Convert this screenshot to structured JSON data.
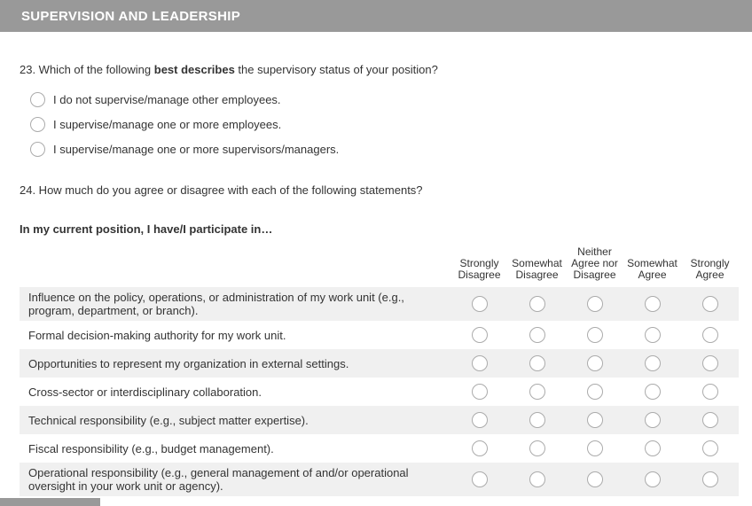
{
  "section": {
    "title": "SUPERVISION AND LEADERSHIP"
  },
  "q23": {
    "prefix": "23. Which of the following ",
    "bold": "best describes",
    "suffix": " the supervisory status of your position?",
    "options": [
      "I do not supervise/manage other employees.",
      "I supervise/manage one or more employees.",
      "I supervise/manage one or more supervisors/managers."
    ]
  },
  "q24": {
    "text": "24. How much do you agree or disagree with each of the following statements?",
    "intro": "In my current position, I have/I participate in…",
    "columns": [
      "Strongly\nDisagree",
      "Somewhat\nDisagree",
      "Neither\nAgree nor\nDisagree",
      "Somewhat\nAgree",
      "Strongly\nAgree"
    ],
    "rows": [
      "Influence on the policy, operations, or administration of my work unit (e.g., program, department, or branch).",
      "Formal decision-making authority for my work unit.",
      "Opportunities to represent my organization in external settings.",
      "Cross-sector or interdisciplinary collaboration.",
      "Technical responsibility (e.g., subject matter expertise).",
      "Fiscal responsibility (e.g., budget management).",
      "Operational responsibility (e.g., general management of and/or operational oversight in your work unit or agency)."
    ]
  },
  "colors": {
    "section_bar_bg": "#999999",
    "row_shade": "#f0f0f0",
    "radio_border": "#ababab",
    "text": "#333333"
  }
}
